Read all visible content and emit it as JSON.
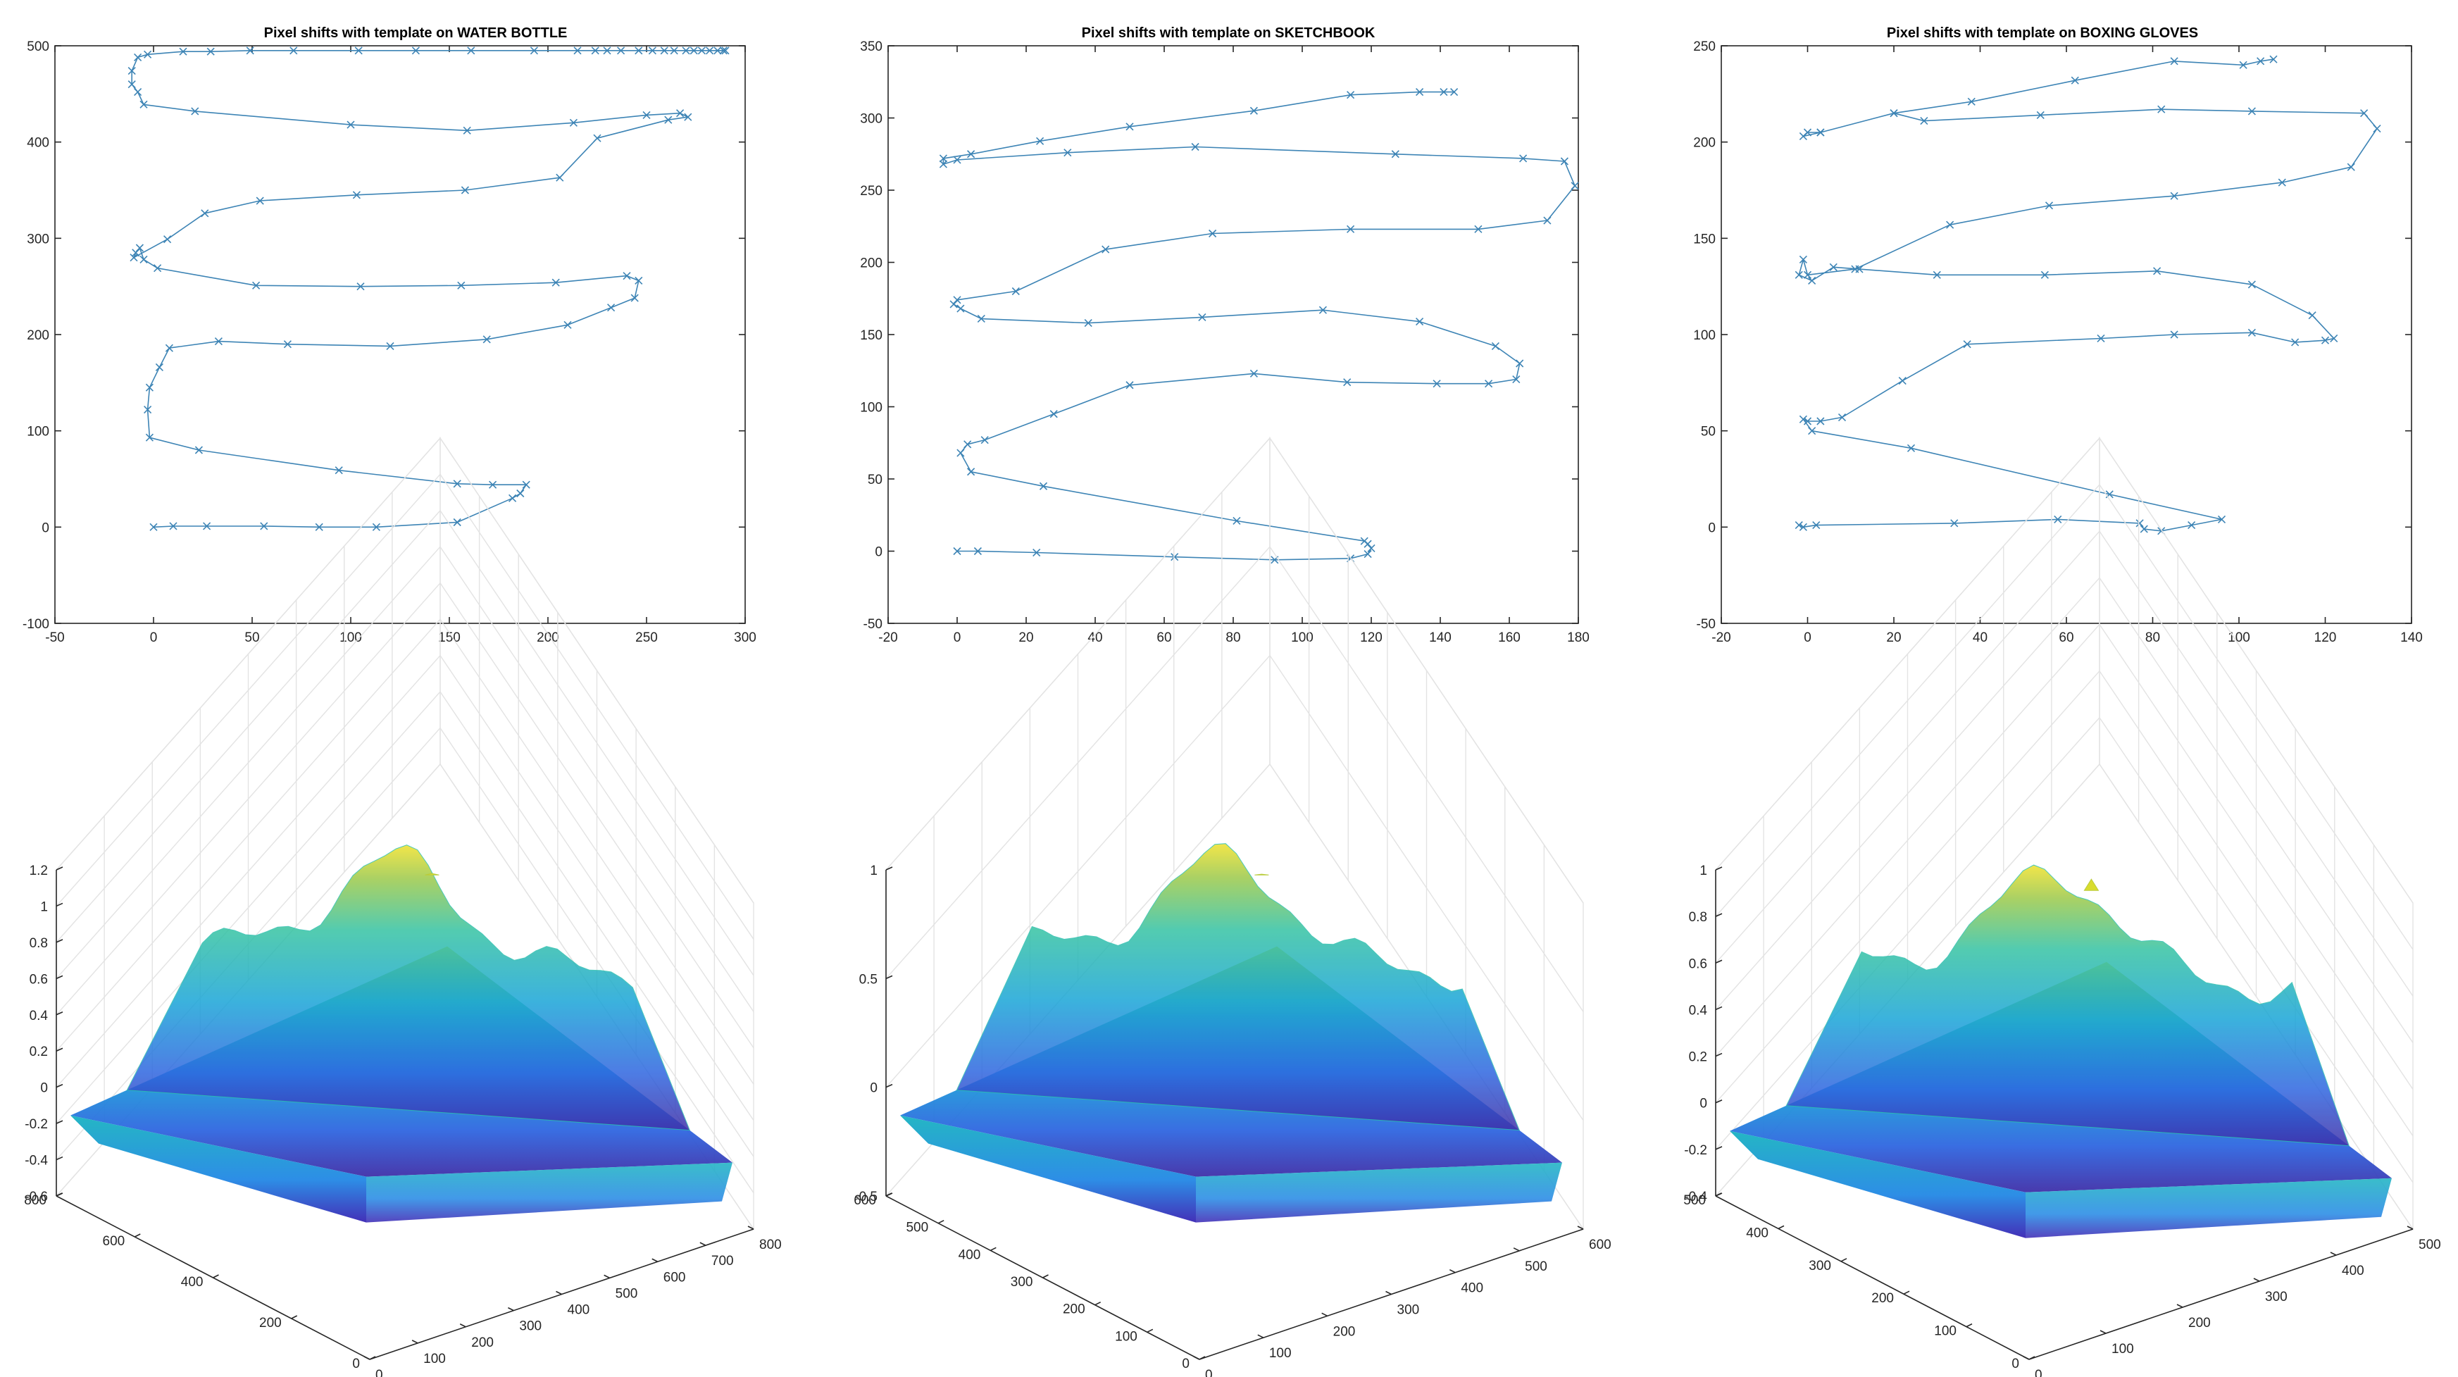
{
  "chart_data": [
    {
      "type": "line",
      "title": "Pixel shifts with template on WATER BOTTLE",
      "xlim": [
        -50,
        300
      ],
      "ylim": [
        -100,
        500
      ],
      "xticks": [
        -50,
        0,
        50,
        100,
        150,
        200,
        250,
        300
      ],
      "yticks": [
        -100,
        0,
        100,
        200,
        300,
        400,
        500
      ],
      "marker": "x",
      "color": "#3d84b5",
      "x": [
        0,
        10,
        27,
        56,
        84,
        113,
        154,
        182,
        186,
        189,
        172,
        154,
        94,
        23,
        -2,
        -3,
        -2,
        3,
        8,
        33,
        68,
        120,
        169,
        210,
        232,
        244,
        246,
        240,
        204,
        156,
        105,
        52,
        2,
        -5,
        -7,
        -9,
        -10,
        7,
        26,
        54,
        103,
        158,
        206,
        225,
        261,
        271,
        267,
        250,
        213,
        159,
        100,
        21,
        -5,
        -8,
        -11,
        -11,
        -8,
        -3,
        15,
        29,
        49,
        71,
        104,
        133,
        161,
        193,
        215,
        224,
        230,
        237,
        246,
        253,
        259,
        264,
        270,
        274,
        278,
        282,
        286,
        289,
        290
      ],
      "y": [
        0,
        1,
        1,
        1,
        0,
        0,
        5,
        30,
        35,
        44,
        44,
        45,
        59,
        80,
        93,
        122,
        145,
        166,
        186,
        193,
        190,
        188,
        195,
        210,
        228,
        238,
        256,
        261,
        254,
        251,
        250,
        251,
        269,
        278,
        290,
        285,
        280,
        299,
        326,
        339,
        345,
        350,
        363,
        404,
        423,
        426,
        430,
        428,
        420,
        412,
        418,
        432,
        439,
        452,
        460,
        474,
        488,
        491,
        494,
        494,
        495,
        495,
        495,
        495,
        495,
        495,
        495,
        495,
        495,
        495,
        495,
        495,
        495,
        495,
        495,
        495,
        495,
        495,
        495,
        495,
        495
      ]
    },
    {
      "type": "line",
      "title": "Pixel shifts with template on SKETCHBOOK",
      "xlim": [
        -20,
        180
      ],
      "ylim": [
        -50,
        350
      ],
      "xticks": [
        -20,
        0,
        20,
        40,
        60,
        80,
        100,
        120,
        140,
        160,
        180
      ],
      "yticks": [
        -50,
        0,
        50,
        100,
        150,
        200,
        250,
        300,
        350
      ],
      "marker": "x",
      "color": "#3d84b5",
      "x": [
        0,
        6,
        23,
        63,
        92,
        114,
        119,
        120,
        119,
        118,
        81,
        25,
        4,
        1,
        3,
        8,
        28,
        50,
        86,
        113,
        139,
        154,
        162,
        163,
        156,
        134,
        106,
        71,
        38,
        7,
        1,
        -1,
        0,
        17,
        43,
        74,
        114,
        151,
        171,
        179,
        176,
        164,
        127,
        69,
        32,
        0,
        -4,
        -4,
        4,
        24,
        50,
        86,
        114,
        134,
        141,
        144
      ],
      "y": [
        0,
        0,
        -1,
        -4,
        -6,
        -5,
        -2,
        2,
        5,
        7,
        21,
        45,
        55,
        68,
        74,
        77,
        95,
        115,
        123,
        117,
        116,
        116,
        119,
        130,
        142,
        159,
        167,
        162,
        158,
        161,
        168,
        171,
        174,
        180,
        209,
        220,
        223,
        223,
        229,
        253,
        270,
        272,
        275,
        280,
        276,
        271,
        268,
        272,
        275,
        284,
        294,
        305,
        316,
        318,
        318,
        318
      ]
    },
    {
      "type": "line",
      "title": "Pixel shifts with template on BOXING GLOVES",
      "xlim": [
        -20,
        140
      ],
      "ylim": [
        -50,
        250
      ],
      "xticks": [
        -20,
        0,
        20,
        40,
        60,
        80,
        100,
        120,
        140
      ],
      "yticks": [
        -50,
        0,
        50,
        100,
        150,
        200,
        250
      ],
      "marker": "x",
      "color": "#3d84b5",
      "x": [
        -2,
        -1,
        2,
        34,
        58,
        77,
        78,
        82,
        89,
        96,
        70,
        24,
        1,
        -1,
        0,
        3,
        8,
        22,
        37,
        68,
        85,
        103,
        113,
        120,
        122,
        117,
        103,
        81,
        55,
        30,
        12,
        6,
        1,
        -2,
        -1,
        0,
        11,
        33,
        56,
        85,
        110,
        126,
        132,
        129,
        103,
        82,
        54,
        27,
        20,
        3,
        -1,
        0,
        3,
        20,
        38,
        62,
        85,
        101,
        105,
        108
      ],
      "y": [
        1,
        0,
        1,
        2,
        4,
        2,
        -1,
        -2,
        1,
        4,
        17,
        41,
        50,
        56,
        55,
        55,
        57,
        76,
        95,
        98,
        100,
        101,
        96,
        97,
        98,
        110,
        126,
        133,
        131,
        131,
        134,
        135,
        128,
        131,
        139,
        131,
        134,
        157,
        167,
        172,
        179,
        187,
        207,
        215,
        216,
        217,
        214,
        211,
        215,
        205,
        203,
        205,
        205,
        215,
        221,
        232,
        242,
        240,
        242,
        243
      ]
    },
    {
      "type": "surface",
      "zlim": [
        -0.6,
        1.2
      ],
      "zticks": [
        -0.6,
        -0.4,
        -0.2,
        0,
        0.2,
        0.4,
        0.6,
        0.8,
        1,
        1.2
      ],
      "xticks": [
        0,
        100,
        200,
        300,
        400,
        500,
        600,
        700,
        800
      ],
      "yticks": [
        0,
        200,
        400,
        600,
        800
      ],
      "peak": 1.18
    },
    {
      "type": "surface",
      "zlim": [
        -0.5,
        1
      ],
      "zticks": [
        -0.5,
        0,
        0.5,
        1
      ],
      "xticks": [
        0,
        100,
        200,
        300,
        400,
        500,
        600
      ],
      "yticks": [
        0,
        100,
        200,
        300,
        400,
        500,
        600
      ],
      "peak": 0.98
    },
    {
      "type": "surface",
      "zlim": [
        -0.4,
        1
      ],
      "zticks": [
        -0.4,
        -0.2,
        0,
        0.2,
        0.4,
        0.6,
        0.8,
        1
      ],
      "xticks": [
        0,
        100,
        200,
        300,
        400,
        500
      ],
      "yticks": [
        0,
        100,
        200,
        300,
        400,
        500
      ],
      "peak": 0.96
    }
  ]
}
